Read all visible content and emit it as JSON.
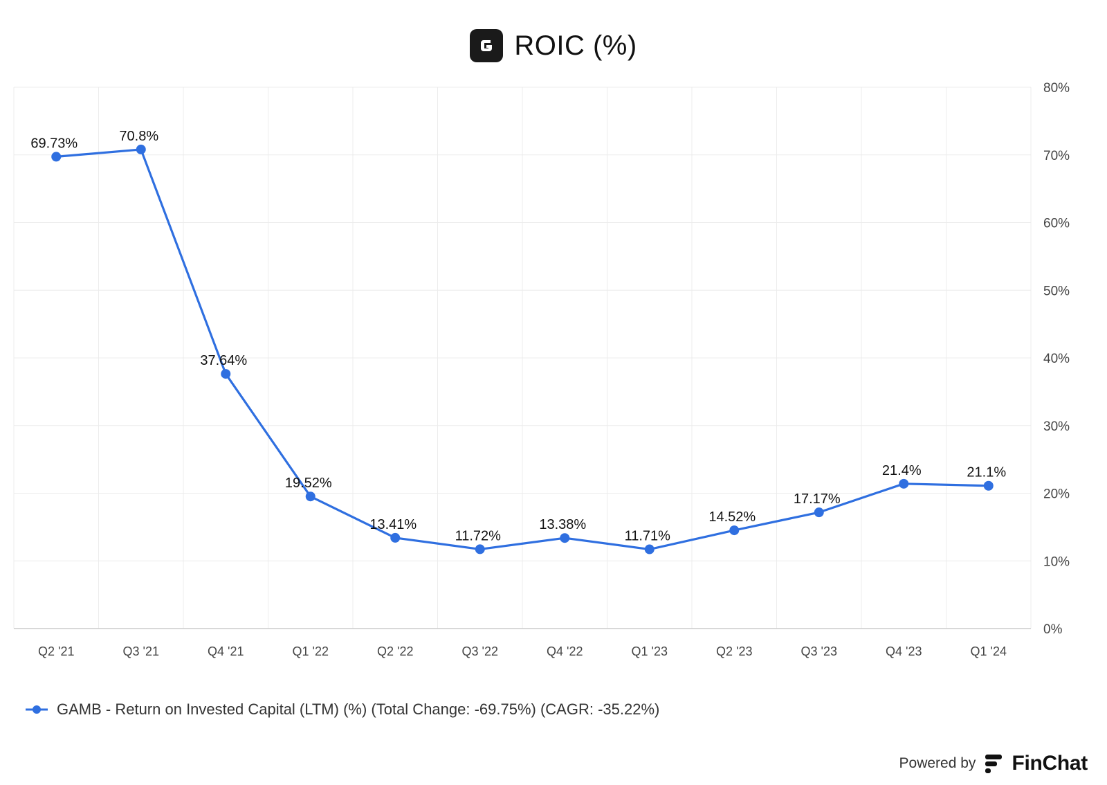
{
  "header": {
    "title": "ROIC (%)",
    "logo_icon": "company-g-logo-icon"
  },
  "chart_data": {
    "type": "line",
    "title": "ROIC (%)",
    "categories": [
      "Q2 '21",
      "Q3 '21",
      "Q4 '21",
      "Q1 '22",
      "Q2 '22",
      "Q3 '22",
      "Q4 '22",
      "Q1 '23",
      "Q2 '23",
      "Q3 '23",
      "Q4 '23",
      "Q1 '24"
    ],
    "series": [
      {
        "name": "GAMB - Return on Invested Capital (LTM) (%) (Total Change: -69.75%) (CAGR: -35.22%)",
        "values": [
          69.73,
          70.8,
          37.64,
          19.52,
          13.41,
          11.72,
          13.38,
          11.71,
          14.52,
          17.17,
          21.4,
          21.1
        ],
        "data_labels": [
          "69.73%",
          "70.8%",
          "37.64%",
          "19.52%",
          "13.41%",
          "11.72%",
          "13.38%",
          "11.71%",
          "14.52%",
          "17.17%",
          "21.4%",
          "21.1%"
        ],
        "color": "#2f6fe0"
      }
    ],
    "ylim": [
      0,
      80
    ],
    "yticks": [
      0,
      10,
      20,
      30,
      40,
      50,
      60,
      70,
      80
    ],
    "ytick_labels": [
      "0%",
      "10%",
      "20%",
      "30%",
      "40%",
      "50%",
      "60%",
      "70%",
      "80%"
    ],
    "y_axis_side": "right",
    "grid": true,
    "legend_position": "bottom-left"
  },
  "legend": {
    "label": "GAMB - Return on Invested Capital (LTM) (%) (Total Change: -69.75%) (CAGR: -35.22%)"
  },
  "footer": {
    "powered_by": "Powered by",
    "brand": "FinChat",
    "brand_icon": "finchat-logo-icon"
  },
  "colors": {
    "line": "#2f6fe0",
    "grid": "#ececec",
    "axis": "#cccccc"
  }
}
